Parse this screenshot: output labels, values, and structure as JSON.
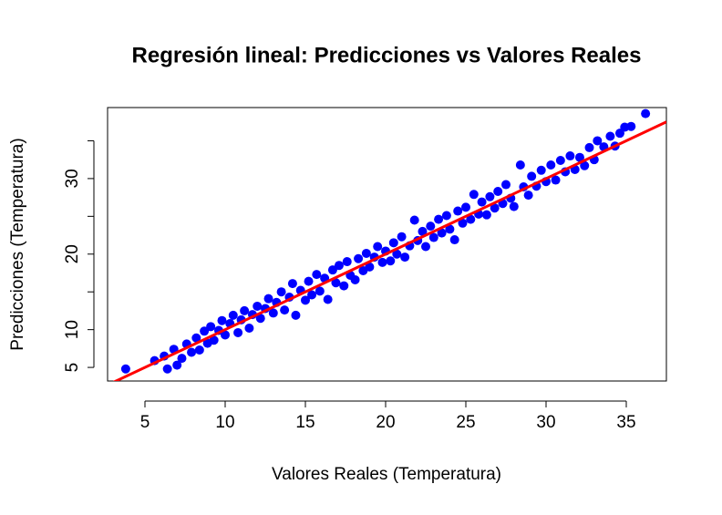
{
  "chart_data": {
    "type": "scatter",
    "title": "Regresión lineal: Predicciones vs Valores Reales",
    "x_label": "Valores Reales (Temperatura)",
    "y_label": "Predicciones (Temperatura)",
    "color": "blue",
    "x": [
      3.8,
      5.6,
      6.2,
      6.4,
      6.8,
      7.0,
      7.3,
      7.6,
      7.9,
      8.2,
      8.4,
      8.7,
      8.9,
      9.1,
      9.3,
      9.6,
      9.8,
      10.0,
      10.3,
      10.5,
      10.8,
      11.0,
      11.2,
      11.5,
      11.7,
      12.0,
      12.2,
      12.5,
      12.7,
      13.0,
      13.2,
      13.5,
      13.7,
      14.0,
      14.2,
      14.4,
      14.7,
      15.0,
      15.2,
      15.4,
      15.7,
      15.9,
      16.2,
      16.4,
      16.7,
      16.9,
      17.1,
      17.4,
      17.6,
      17.8,
      18.1,
      18.3,
      18.6,
      18.8,
      19.0,
      19.3,
      19.5,
      19.8,
      20.0,
      20.3,
      20.5,
      20.7,
      21.0,
      21.2,
      21.5,
      21.8,
      22.0,
      22.3,
      22.5,
      22.8,
      23.0,
      23.3,
      23.5,
      23.8,
      24.0,
      24.3,
      24.5,
      24.8,
      25.0,
      25.3,
      25.5,
      25.8,
      26.0,
      26.3,
      26.5,
      26.8,
      27.0,
      27.3,
      27.5,
      27.8,
      28.0,
      28.4,
      28.6,
      28.9,
      29.1,
      29.4,
      29.7,
      30.0,
      30.3,
      30.6,
      30.9,
      31.2,
      31.5,
      31.8,
      32.1,
      32.4,
      32.7,
      33.0,
      33.2,
      33.6,
      34.0,
      34.3,
      34.6,
      34.9,
      35.3,
      36.2
    ],
    "y": [
      4.8,
      5.9,
      6.5,
      4.8,
      7.4,
      5.3,
      6.2,
      8.1,
      7.0,
      8.9,
      7.3,
      9.8,
      8.2,
      10.4,
      8.6,
      9.9,
      11.2,
      9.3,
      10.8,
      11.9,
      9.6,
      11.3,
      12.5,
      10.2,
      12.0,
      13.1,
      11.5,
      12.8,
      14.1,
      12.2,
      13.6,
      15.0,
      12.6,
      14.3,
      16.1,
      11.9,
      15.2,
      13.9,
      16.4,
      14.6,
      17.3,
      15.1,
      16.8,
      14.0,
      17.9,
      16.2,
      18.5,
      15.8,
      19.0,
      17.2,
      16.6,
      19.4,
      17.8,
      20.1,
      18.3,
      19.6,
      21.0,
      18.9,
      20.4,
      19.1,
      21.5,
      20.0,
      22.3,
      19.6,
      21.1,
      24.5,
      21.8,
      23.0,
      21.0,
      23.7,
      22.2,
      24.6,
      22.8,
      25.1,
      23.3,
      21.9,
      25.7,
      24.1,
      26.2,
      24.6,
      27.9,
      25.3,
      26.9,
      25.2,
      27.6,
      26.1,
      28.3,
      26.7,
      29.2,
      27.4,
      26.3,
      31.8,
      28.9,
      27.8,
      30.3,
      29.0,
      31.1,
      29.6,
      31.8,
      29.8,
      32.4,
      30.9,
      33.0,
      31.2,
      32.8,
      31.7,
      34.1,
      32.5,
      35.0,
      34.2,
      35.6,
      34.3,
      36.0,
      36.8,
      36.9,
      38.6
    ],
    "fit_line": {
      "intercept": 0,
      "slope": 1,
      "color": "red"
    },
    "xlim": [
      2.67,
      37.5
    ],
    "ylim": [
      3.2,
      39.4
    ],
    "xticks": [
      5,
      10,
      15,
      20,
      25,
      30,
      35
    ],
    "yticks": [
      5,
      10,
      20,
      30
    ],
    "y_minor_ticks": [
      15,
      25,
      35
    ]
  }
}
